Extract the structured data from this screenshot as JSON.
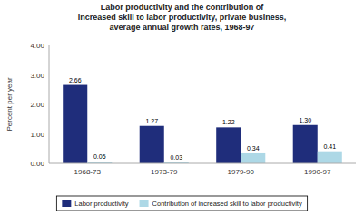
{
  "chart_data": {
    "type": "bar",
    "title": "Labor productivity and the contribution of\nincreased skill to labor productivity, private business,\naverage annual growth rates, 1968-97",
    "categories": [
      "1968-73",
      "1973-79",
      "1979-90",
      "1990-97"
    ],
    "series": [
      {
        "name": "Labor productivity",
        "color": "#1F2D7B",
        "values": [
          2.66,
          1.27,
          1.22,
          1.3
        ],
        "value_labels": [
          "2.66",
          "1.27",
          "1.22",
          "1.30"
        ]
      },
      {
        "name": "Contribution of increased skill to labor productivity",
        "color": "#ADD8E6",
        "values": [
          0.05,
          0.03,
          0.34,
          0.41
        ],
        "value_labels": [
          "0.05",
          "0.03",
          "0.34",
          "0.41"
        ]
      }
    ],
    "ylabel": "Percent per year",
    "ylim": [
      0,
      4.0
    ],
    "yticks": [
      {
        "value": 0,
        "label": "0.00"
      },
      {
        "value": 1,
        "label": "1.00"
      },
      {
        "value": 2,
        "label": "2.00"
      },
      {
        "value": 3,
        "label": "3.00"
      },
      {
        "value": 4,
        "label": "4.00"
      }
    ],
    "data_labels": true,
    "grid": false,
    "legend": "bottom"
  }
}
